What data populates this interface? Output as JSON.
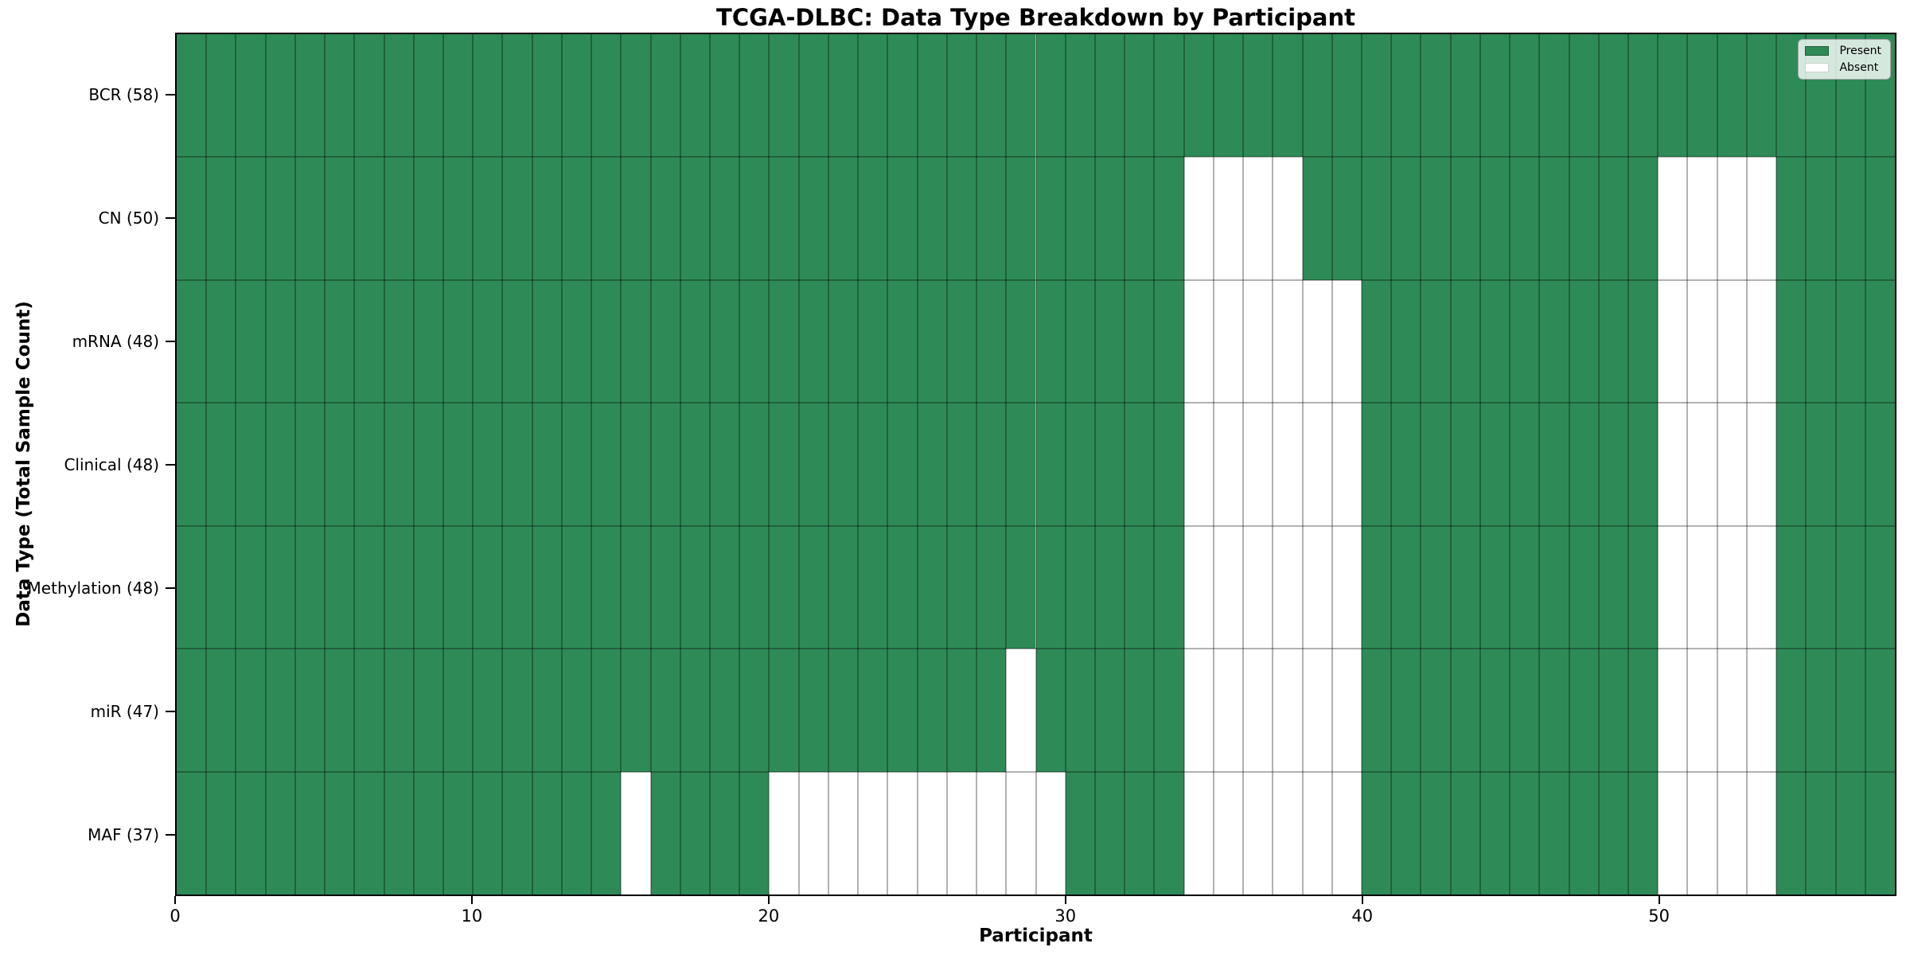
{
  "chart_data": {
    "type": "heatmap",
    "title": "TCGA-DLBC: Data Type Breakdown by Participant",
    "xlabel": "Participant",
    "ylabel": "Data Type (Total Sample Count)",
    "x_range": [
      0,
      58
    ],
    "x_ticks": [
      0,
      10,
      20,
      30,
      40,
      50
    ],
    "n_participants": 58,
    "grid": true,
    "legend_position": "upper right",
    "legend": {
      "present_label": "Present",
      "absent_label": "Absent"
    },
    "colors": {
      "present": "#2e8b57",
      "absent": "#ffffff"
    },
    "rows": [
      {
        "label": "BCR (58)",
        "data_type": "BCR",
        "total": 58,
        "absent": []
      },
      {
        "label": "CN (50)",
        "data_type": "CN",
        "total": 50,
        "absent": [
          34,
          35,
          36,
          37,
          50,
          51,
          52,
          53
        ]
      },
      {
        "label": "mRNA (48)",
        "data_type": "mRNA",
        "total": 48,
        "absent": [
          34,
          35,
          36,
          37,
          38,
          39,
          50,
          51,
          52,
          53
        ]
      },
      {
        "label": "Clinical (48)",
        "data_type": "Clinical",
        "total": 48,
        "absent": [
          34,
          35,
          36,
          37,
          38,
          39,
          50,
          51,
          52,
          53
        ]
      },
      {
        "label": "Methylation (48)",
        "data_type": "Methylation",
        "total": 48,
        "absent": [
          34,
          35,
          36,
          37,
          38,
          39,
          50,
          51,
          52,
          53
        ]
      },
      {
        "label": "miR (47)",
        "data_type": "miR",
        "total": 47,
        "absent": [
          28,
          34,
          35,
          36,
          37,
          38,
          39,
          50,
          51,
          52,
          53
        ]
      },
      {
        "label": "MAF (37)",
        "data_type": "MAF",
        "total": 37,
        "absent": [
          15,
          20,
          21,
          22,
          23,
          24,
          25,
          26,
          27,
          28,
          29,
          34,
          35,
          36,
          37,
          38,
          39,
          50,
          51,
          52,
          53
        ]
      }
    ]
  }
}
